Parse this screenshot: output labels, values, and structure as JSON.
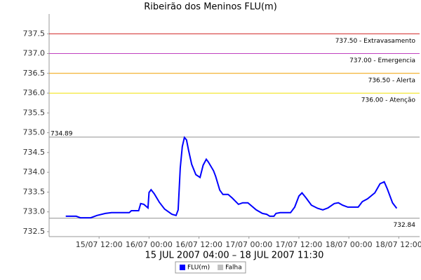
{
  "chart_data": {
    "type": "line",
    "title": "Ribeirão dos Meninos FLU(m)",
    "x_label": "15 JUL 2007 04:00 – 18 JUL 2007 11:30",
    "x": [
      "15/07 04:00",
      "15/07 06:30",
      "15/07 07:30",
      "15/07 10:00",
      "15/07 11:30",
      "15/07 13:30",
      "15/07 15:00",
      "15/07 19:15",
      "15/07 19:45",
      "15/07 21:30",
      "15/07 22:00",
      "15/07 22:45",
      "15/07 23:45",
      "16/07 00:00",
      "16/07 00:30",
      "16/07 01:15",
      "16/07 02:30",
      "16/07 03:45",
      "16/07 05:30",
      "16/07 06:30",
      "16/07 07:00",
      "16/07 07:30",
      "16/07 08:00",
      "16/07 08:30",
      "16/07 09:00",
      "16/07 09:30",
      "16/07 10:15",
      "16/07 11:15",
      "16/07 12:15",
      "16/07 13:00",
      "16/07 13:45",
      "16/07 14:15",
      "16/07 15:30",
      "16/07 16:00",
      "16/07 17:00",
      "16/07 17:45",
      "16/07 19:00",
      "16/07 20:00",
      "16/07 21:30",
      "16/07 22:30",
      "16/07 23:45",
      "17/07 00:45",
      "17/07 01:45",
      "17/07 03:15",
      "17/07 04:15",
      "17/07 05:00",
      "17/07 06:00",
      "17/07 06:30",
      "17/07 07:30",
      "17/07 10:00",
      "17/07 11:00",
      "17/07 12:00",
      "17/07 12:45",
      "17/07 13:45",
      "17/07 15:00",
      "17/07 16:30",
      "17/07 17:45",
      "17/07 19:00",
      "17/07 20:30",
      "17/07 21:30",
      "17/07 22:30",
      "17/07 23:45",
      "18/07 02:15",
      "18/07 03:15",
      "18/07 04:30",
      "18/07 06:15",
      "18/07 07:30",
      "18/07 08:30",
      "18/07 09:15",
      "18/07 10:30",
      "18/07 11:30"
    ],
    "series": [
      {
        "name": "FLU(m)",
        "color": "#0000ff",
        "values": [
          732.89,
          732.89,
          732.85,
          732.85,
          732.91,
          732.96,
          732.98,
          732.98,
          733.03,
          733.03,
          733.21,
          733.19,
          733.1,
          733.49,
          733.56,
          733.46,
          733.24,
          733.07,
          732.94,
          732.91,
          733.05,
          734.11,
          734.65,
          734.88,
          734.82,
          734.56,
          734.2,
          733.94,
          733.87,
          734.18,
          734.33,
          734.26,
          734.04,
          733.9,
          733.55,
          733.44,
          733.44,
          733.35,
          733.19,
          733.23,
          733.23,
          733.14,
          733.05,
          732.96,
          732.94,
          732.89,
          732.89,
          732.96,
          732.98,
          732.98,
          733.12,
          733.4,
          733.48,
          733.35,
          733.17,
          733.09,
          733.05,
          733.1,
          733.21,
          733.23,
          733.17,
          733.12,
          733.12,
          733.26,
          733.33,
          733.48,
          733.71,
          733.76,
          733.58,
          733.23,
          733.09
        ]
      },
      {
        "name": "Falha",
        "color": "#c0c0c0"
      }
    ],
    "annotations": [
      {
        "value": 737.5,
        "label": "737.50 - Extravasamento",
        "color": "#d02020"
      },
      {
        "value": 737.0,
        "label": "737.00 - Emergencia",
        "color": "#c040c0"
      },
      {
        "value": 736.5,
        "label": "736.50 - Alerta",
        "color": "#f0a000"
      },
      {
        "value": 736.0,
        "label": "736.00 - Atenção",
        "color": "#f0e000"
      },
      {
        "value": 734.89,
        "label": "734.89",
        "color": "#909090",
        "label_side": "left"
      },
      {
        "value": 732.84,
        "label": "732.84",
        "color": "#909090",
        "label_side": "right-below"
      }
    ],
    "xlim": [
      "15/07 00:00",
      "18/07 17:00"
    ],
    "xticks": [
      "15/07 12:00",
      "16/07 00:00",
      "16/07 12:00",
      "17/07 00:00",
      "17/07 12:00",
      "18/07 00:00",
      "18/07 12:00"
    ],
    "ylim": [
      732.375,
      738.0
    ],
    "yticks": [
      732.5,
      {
        "value": 733,
        "label": "733.0"
      },
      733.5,
      {
        "value": 734,
        "label": "734.0"
      },
      734.5,
      {
        "value": 735,
        "label": "735.0"
      },
      735.5,
      {
        "value": 736,
        "label": "736.0"
      },
      736.5,
      {
        "value": 737,
        "label": "737.0"
      },
      737.5
    ],
    "grid": false
  }
}
